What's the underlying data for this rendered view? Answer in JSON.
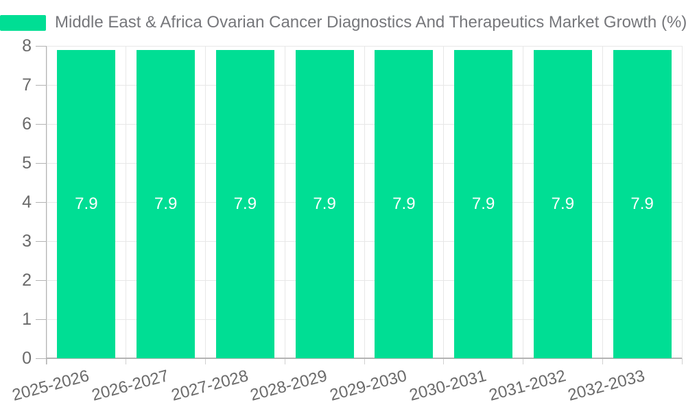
{
  "chart_data": {
    "type": "bar",
    "title": "Middle East & Africa Ovarian Cancer Diagnostics And Therapeutics Market Growth (%)",
    "categories": [
      "2025-2026",
      "2026-2027",
      "2027-2028",
      "2028-2029",
      "2029-2030",
      "2030-2031",
      "2031-2032",
      "2032-2033"
    ],
    "values": [
      7.9,
      7.9,
      7.9,
      7.9,
      7.9,
      7.9,
      7.9,
      7.9
    ],
    "data_labels": [
      "7.9",
      "7.9",
      "7.9",
      "7.9",
      "7.9",
      "7.9",
      "7.9",
      "7.9"
    ],
    "xlabel": "",
    "ylabel": "",
    "ylim": [
      0,
      8
    ],
    "yticks": [
      "0",
      "1",
      "2",
      "3",
      "4",
      "5",
      "6",
      "7",
      "8"
    ],
    "grid": true,
    "legend_position": "top-left",
    "x_label_rotation_deg": -15
  },
  "colors": {
    "accent": "#00DE94",
    "title_text": "#76777B",
    "axis_text": "#6A6A6A",
    "gridline": "#E7E7E7",
    "axis_line": "#B3B3B3",
    "tick_light": "#D0D0D0",
    "value_text": "#FFFFFF",
    "background": "#FFFFFF"
  }
}
